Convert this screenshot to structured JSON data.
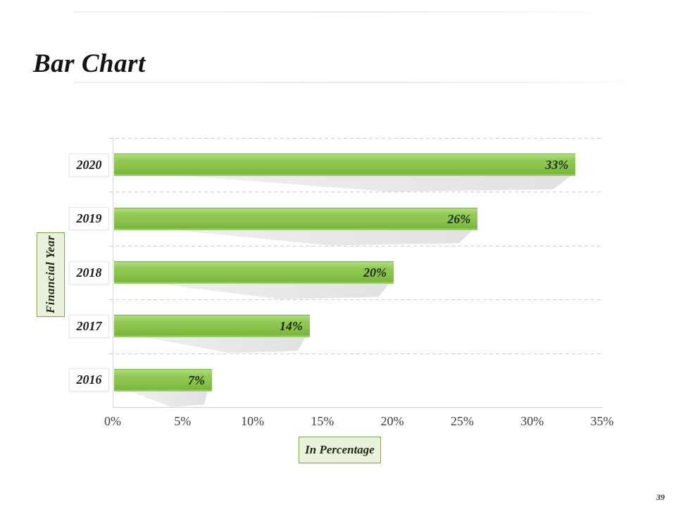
{
  "page": {
    "title": "Bar Chart",
    "page_number": "39"
  },
  "chart_data": {
    "type": "bar",
    "orientation": "horizontal",
    "title": "Bar Chart",
    "categories": [
      "2020",
      "2019",
      "2018",
      "2017",
      "2016"
    ],
    "values": [
      33,
      26,
      20,
      14,
      7
    ],
    "value_labels": [
      "33%",
      "26%",
      "20%",
      "14%",
      "7%"
    ],
    "x_ticks": [
      "0%",
      "5%",
      "10%",
      "15%",
      "20%",
      "25%",
      "30%",
      "35%"
    ],
    "xlim": [
      0,
      35
    ],
    "xlabel": "In Percentage",
    "ylabel": "Financial Year",
    "legend": "none",
    "grid": "dashed horizontal gridlines between categories",
    "colors": {
      "bar_green": "#87c249",
      "bar_green_light": "#aedd7d",
      "bar_green_dark": "#7ab53d",
      "axis_label_box_bg": "#eaf2dc",
      "axis_label_box_border": "#7fa554",
      "gridline": "#cdcdcd",
      "shadow": "#e5e5e5",
      "text_dark": "#1c1c1c"
    }
  }
}
